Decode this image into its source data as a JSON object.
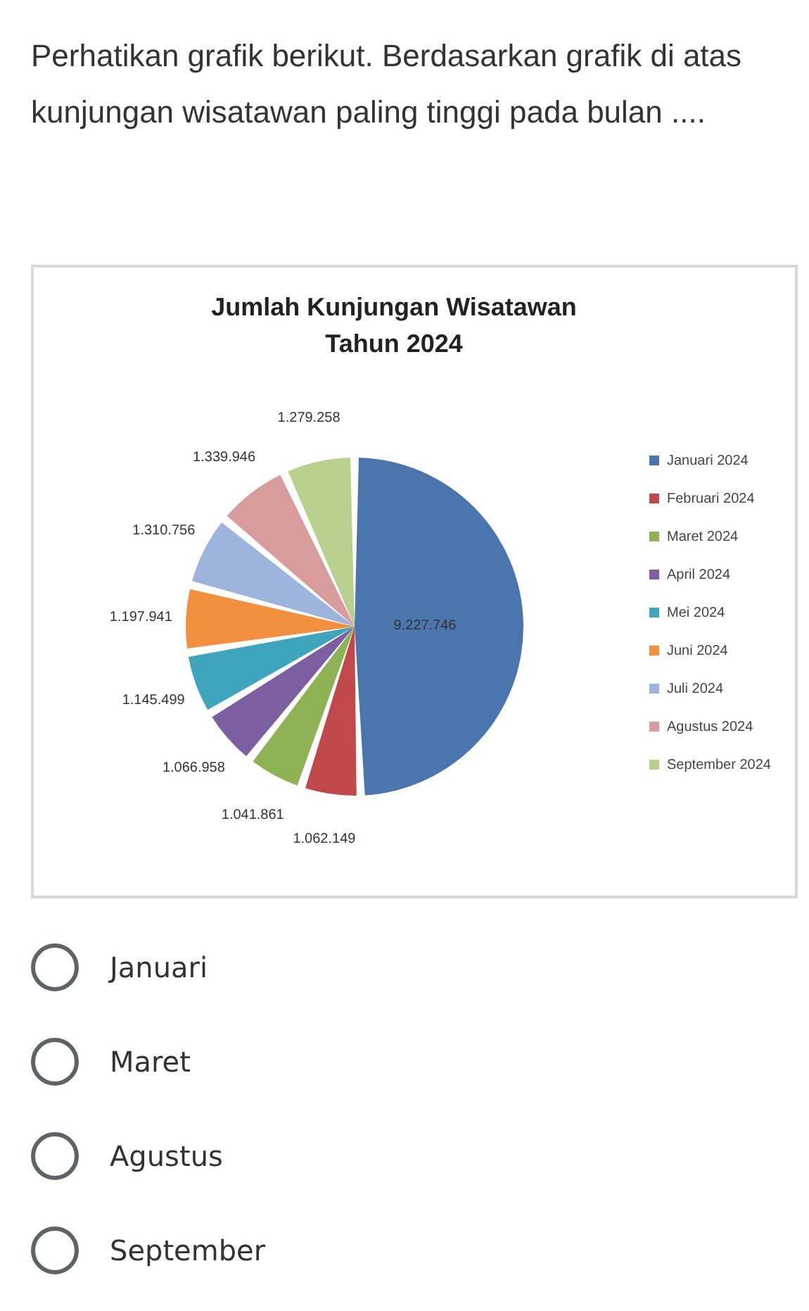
{
  "chart_data": {
    "type": "pie",
    "title": "Jumlah Kunjungan Wisatawan Tahun 2024",
    "categories": [
      "Januari 2024",
      "Februari 2024",
      "Maret 2024",
      "April 2024",
      "Mei 2024",
      "Juni 2024",
      "Juli 2024",
      "Agustus 2024",
      "September 2024"
    ],
    "values": [
      9227746,
      1062149,
      1041861,
      1066958,
      1145499,
      1197941,
      1310756,
      1339946,
      1279258
    ],
    "value_labels": [
      "9.227.746",
      "1.062.149",
      "1.041.861",
      "1.066.958",
      "1.145.499",
      "1.197.941",
      "1.310.756",
      "1.339.946",
      "1.279.258"
    ],
    "colors": [
      "#4a76ad",
      "#c0484b",
      "#8fb354",
      "#7b5fa0",
      "#3ea5bd",
      "#f3903f",
      "#9db5dc",
      "#d99c9d",
      "#b9d18f"
    ],
    "legend": "right",
    "annotations": [
      "Perhatikan grafik berikut. Berdasarkan grafik di atas kunjungan wisatawan paling tinggi pada bulan ....",
      "Januari",
      "Maret",
      "Agustus",
      "September"
    ]
  }
}
